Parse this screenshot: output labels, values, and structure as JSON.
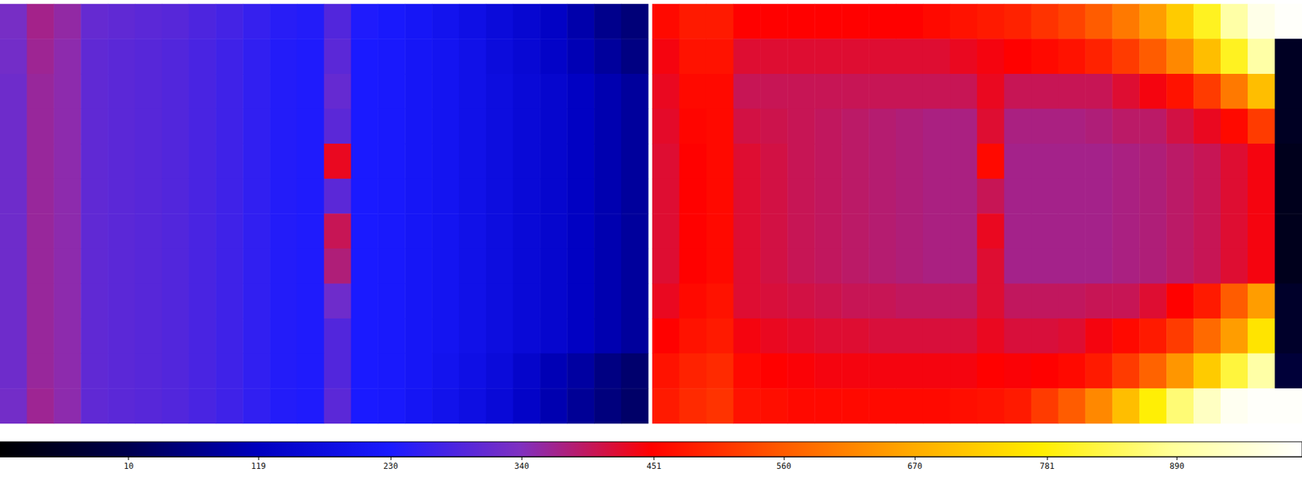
{
  "chart_data": {
    "type": "heatmap",
    "panels": [
      {
        "values": [
          [
            330,
            370,
            355,
            310,
            305,
            300,
            295,
            285,
            275,
            260,
            245,
            240,
            290,
            235,
            225,
            215,
            200,
            185,
            165,
            150,
            130,
            100,
            70,
            50
          ],
          [
            325,
            365,
            350,
            305,
            300,
            295,
            290,
            280,
            270,
            255,
            240,
            235,
            300,
            230,
            225,
            215,
            205,
            190,
            170,
            155,
            135,
            110,
            85,
            60
          ],
          [
            320,
            360,
            350,
            305,
            300,
            295,
            290,
            280,
            270,
            255,
            240,
            235,
            310,
            230,
            225,
            215,
            205,
            190,
            175,
            160,
            145,
            125,
            105,
            85
          ],
          [
            320,
            360,
            350,
            305,
            300,
            295,
            290,
            280,
            270,
            255,
            240,
            235,
            300,
            230,
            225,
            215,
            205,
            190,
            175,
            160,
            145,
            125,
            105,
            85
          ],
          [
            320,
            360,
            350,
            305,
            300,
            295,
            290,
            280,
            270,
            255,
            240,
            235,
            430,
            230,
            225,
            215,
            205,
            190,
            175,
            160,
            145,
            125,
            105,
            85
          ],
          [
            320,
            360,
            350,
            305,
            300,
            295,
            290,
            280,
            270,
            255,
            240,
            235,
            300,
            230,
            225,
            215,
            205,
            190,
            175,
            160,
            145,
            125,
            105,
            85
          ],
          [
            320,
            360,
            350,
            305,
            300,
            295,
            290,
            280,
            270,
            255,
            240,
            235,
            400,
            230,
            225,
            215,
            205,
            190,
            175,
            160,
            145,
            125,
            105,
            85
          ],
          [
            320,
            360,
            350,
            305,
            300,
            295,
            290,
            280,
            270,
            255,
            240,
            235,
            380,
            230,
            225,
            215,
            205,
            190,
            175,
            160,
            145,
            125,
            105,
            85
          ],
          [
            320,
            360,
            350,
            305,
            300,
            295,
            290,
            280,
            270,
            255,
            240,
            235,
            320,
            230,
            225,
            215,
            205,
            190,
            175,
            160,
            145,
            125,
            105,
            85
          ],
          [
            320,
            360,
            350,
            305,
            300,
            295,
            290,
            280,
            270,
            255,
            240,
            235,
            290,
            230,
            225,
            215,
            205,
            190,
            175,
            160,
            145,
            125,
            105,
            85
          ],
          [
            320,
            360,
            350,
            305,
            300,
            295,
            290,
            280,
            270,
            255,
            240,
            235,
            290,
            230,
            225,
            215,
            200,
            185,
            165,
            140,
            110,
            90,
            60,
            40
          ],
          [
            325,
            365,
            350,
            305,
            300,
            295,
            290,
            280,
            270,
            255,
            240,
            235,
            300,
            230,
            225,
            210,
            195,
            180,
            160,
            135,
            105,
            80,
            55,
            35
          ]
        ]
      },
      {
        "values": [
          [
            460,
            480,
            480,
            450,
            450,
            450,
            450,
            450,
            450,
            450,
            460,
            470,
            480,
            490,
            510,
            530,
            560,
            600,
            650,
            720,
            800,
            900,
            970,
            990
          ],
          [
            440,
            470,
            470,
            420,
            420,
            420,
            420,
            420,
            420,
            420,
            420,
            430,
            440,
            450,
            460,
            470,
            490,
            520,
            560,
            620,
            700,
            800,
            900,
            -50
          ],
          [
            430,
            460,
            460,
            400,
            400,
            400,
            400,
            400,
            400,
            400,
            400,
            400,
            430,
            400,
            400,
            400,
            400,
            420,
            440,
            470,
            520,
            600,
            700,
            -50
          ],
          [
            425,
            455,
            460,
            410,
            405,
            400,
            395,
            390,
            385,
            380,
            375,
            375,
            420,
            375,
            375,
            375,
            380,
            390,
            390,
            410,
            430,
            460,
            520,
            -50
          ],
          [
            420,
            450,
            460,
            420,
            410,
            400,
            395,
            390,
            385,
            380,
            375,
            375,
            460,
            370,
            370,
            370,
            370,
            375,
            380,
            390,
            400,
            420,
            440,
            -60
          ],
          [
            420,
            450,
            460,
            420,
            410,
            400,
            395,
            390,
            385,
            380,
            375,
            375,
            400,
            370,
            370,
            370,
            370,
            375,
            380,
            390,
            400,
            420,
            440,
            -60
          ],
          [
            420,
            450,
            460,
            420,
            410,
            400,
            395,
            390,
            385,
            380,
            375,
            375,
            430,
            370,
            370,
            370,
            370,
            375,
            380,
            390,
            400,
            420,
            440,
            -60
          ],
          [
            420,
            450,
            460,
            420,
            410,
            400,
            395,
            390,
            385,
            380,
            375,
            375,
            420,
            370,
            370,
            370,
            370,
            375,
            380,
            390,
            400,
            420,
            440,
            -60
          ],
          [
            430,
            460,
            470,
            420,
            415,
            410,
            405,
            400,
            400,
            395,
            395,
            395,
            420,
            395,
            395,
            395,
            400,
            400,
            420,
            450,
            480,
            560,
            650,
            -40
          ],
          [
            450,
            470,
            480,
            440,
            430,
            425,
            420,
            420,
            415,
            415,
            415,
            415,
            430,
            415,
            415,
            420,
            440,
            460,
            480,
            520,
            580,
            650,
            760,
            -40
          ],
          [
            470,
            490,
            500,
            460,
            450,
            445,
            440,
            440,
            440,
            440,
            440,
            440,
            450,
            445,
            450,
            460,
            480,
            520,
            570,
            640,
            720,
            820,
            900,
            -20
          ],
          [
            480,
            500,
            510,
            470,
            465,
            460,
            460,
            460,
            460,
            460,
            460,
            465,
            470,
            480,
            520,
            560,
            620,
            700,
            780,
            860,
            930,
            980,
            990,
            990
          ]
        ]
      }
    ],
    "color_range": [
      -98,
      995
    ],
    "colorbar_ticks": [
      10,
      119,
      230,
      340,
      451,
      560,
      670,
      781,
      890
    ]
  }
}
